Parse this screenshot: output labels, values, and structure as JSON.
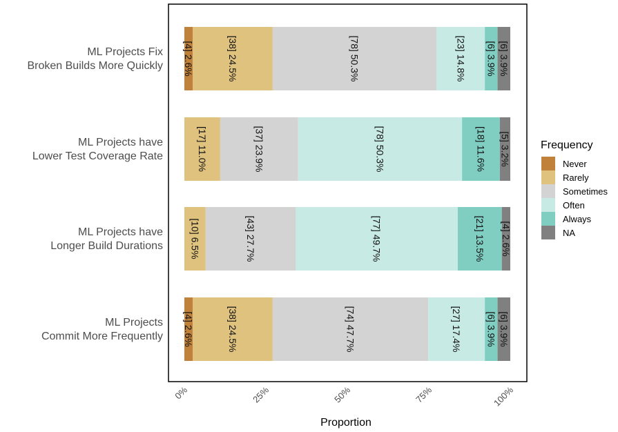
{
  "chart_data": {
    "type": "bar",
    "orientation": "horizontal",
    "stacked": true,
    "xlabel": "Proportion",
    "ylabel": "",
    "xlim": [
      0,
      100
    ],
    "x_ticks": [
      "0%",
      "25%",
      "50%",
      "75%",
      "100%"
    ],
    "legend": {
      "title": "Frequency",
      "placement": "right",
      "entries": [
        {
          "name": "Never",
          "color": "#C0823A"
        },
        {
          "name": "Rarely",
          "color": "#DFC27D"
        },
        {
          "name": "Sometimes",
          "color": "#D3D3D3"
        },
        {
          "name": "Often",
          "color": "#C7EAE5"
        },
        {
          "name": "Always",
          "color": "#80CDC1"
        },
        {
          "name": "NA",
          "color": "#808080"
        }
      ]
    },
    "categories": [
      {
        "label_lines": [
          "ML Projects Fix",
          "Broken Builds More Quickly"
        ],
        "segments": [
          {
            "level": "Never",
            "value": 2.6,
            "label": "[4] 2.6%"
          },
          {
            "level": "Rarely",
            "value": 24.5,
            "label": "[38] 24.5%"
          },
          {
            "level": "Sometimes",
            "value": 50.3,
            "label": "[78] 50.3%"
          },
          {
            "level": "Often",
            "value": 14.8,
            "label": "[23] 14.8%"
          },
          {
            "level": "Always",
            "value": 3.9,
            "label": "[6] 3.9%"
          },
          {
            "level": "NA",
            "value": 3.9,
            "label": "[6] 3.9%"
          }
        ]
      },
      {
        "label_lines": [
          "ML Projects have",
          "Lower Test Coverage Rate"
        ],
        "segments": [
          {
            "level": "Rarely",
            "value": 11.0,
            "label": "[17] 11.0%"
          },
          {
            "level": "Sometimes",
            "value": 23.9,
            "label": "[37] 23.9%"
          },
          {
            "level": "Often",
            "value": 50.3,
            "label": "[78] 50.3%"
          },
          {
            "level": "Always",
            "value": 11.6,
            "label": "[18] 11.6%"
          },
          {
            "level": "NA",
            "value": 3.2,
            "label": "[5] 3.2%"
          }
        ]
      },
      {
        "label_lines": [
          "ML Projects have",
          "Longer Build Durations"
        ],
        "segments": [
          {
            "level": "Rarely",
            "value": 6.5,
            "label": "[10] 6.5%"
          },
          {
            "level": "Sometimes",
            "value": 27.7,
            "label": "[43] 27.7%"
          },
          {
            "level": "Often",
            "value": 49.7,
            "label": "[77] 49.7%"
          },
          {
            "level": "Always",
            "value": 13.5,
            "label": "[21] 13.5%"
          },
          {
            "level": "NA",
            "value": 2.6,
            "label": "[4] 2.6%"
          }
        ]
      },
      {
        "label_lines": [
          "ML Projects",
          "Commit More Frequently"
        ],
        "segments": [
          {
            "level": "Never",
            "value": 2.6,
            "label": "[4] 2.6%"
          },
          {
            "level": "Rarely",
            "value": 24.5,
            "label": "[38] 24.5%"
          },
          {
            "level": "Sometimes",
            "value": 47.7,
            "label": "[74] 47.7%"
          },
          {
            "level": "Often",
            "value": 17.4,
            "label": "[27] 17.4%"
          },
          {
            "level": "Always",
            "value": 3.9,
            "label": "[6] 3.9%"
          },
          {
            "level": "NA",
            "value": 3.9,
            "label": "[6] 3.9%"
          }
        ]
      }
    ]
  }
}
